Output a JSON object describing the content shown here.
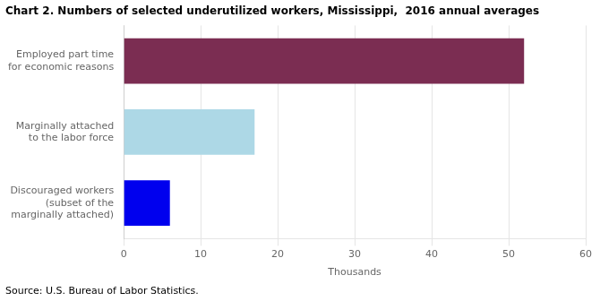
{
  "chart_data": {
    "type": "bar",
    "orientation": "horizontal",
    "title": "Chart 2. Numbers of selected underutilized workers, Mississippi,  2016 annual averages",
    "source": "Source: U.S. Bureau of Labor Statistics.",
    "categories": [
      "Discouraged workers\n(subset of the\nmarginally attached)",
      "Marginally attached\nto the labor force",
      "Employed part time\nfor economic reasons"
    ],
    "values": [
      6.0,
      17.0,
      52.0
    ],
    "colors": [
      "#0000EE",
      "#ADD8E6",
      "#7B2D52"
    ],
    "xlabel": "Thousands",
    "xlim": [
      0,
      60
    ],
    "xticks": [
      0,
      10,
      20,
      30,
      40,
      50,
      60
    ],
    "grid": true
  }
}
